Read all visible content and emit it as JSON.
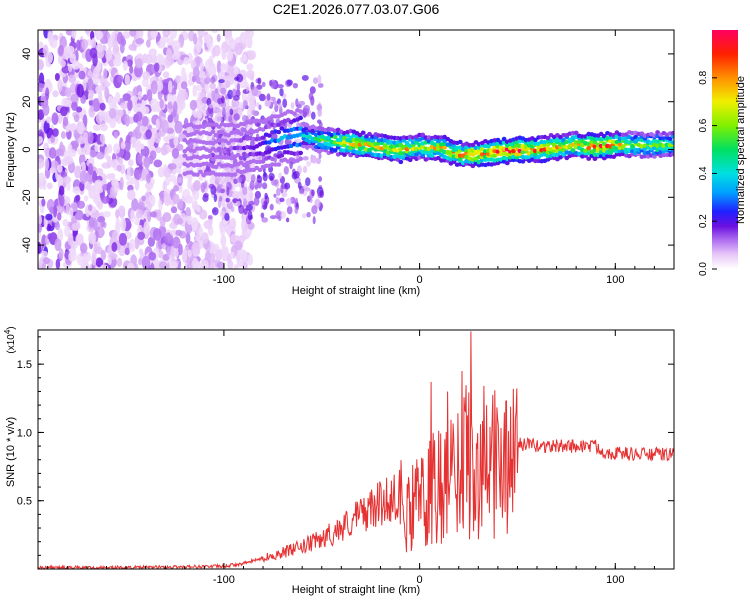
{
  "title": "C2E1.2026.077.03.07.G06",
  "chart_data": [
    {
      "type": "heatmap",
      "title": "C2E1.2026.077.03.07.G06",
      "xlabel": "Height of straight line (km)",
      "ylabel": "Frequency (Hz)",
      "xlim": [
        -195,
        130
      ],
      "ylim": [
        -50,
        50
      ],
      "xticks": [
        -100,
        0,
        100
      ],
      "yticks": [
        -40,
        -20,
        0,
        20,
        40
      ],
      "xtick_labels": [
        "-100",
        "0",
        "100"
      ],
      "ytick_labels": [
        "-40",
        "-20",
        "0",
        "20",
        "40"
      ],
      "colorbar": {
        "label": "Normalized spectral amplitude",
        "range": [
          0,
          1
        ],
        "ticks": [
          0.0,
          0.2,
          0.4,
          0.6,
          0.8
        ],
        "tick_labels": [
          "0.0",
          "0.2",
          "0.4",
          "0.6",
          "0.8"
        ]
      },
      "ridge": {
        "description": "dominant frequency track",
        "x": [
          -110,
          -95,
          -80,
          -70,
          -60,
          -50,
          -40,
          -30,
          -20,
          -10,
          0,
          10,
          20,
          30,
          40,
          50,
          60,
          70,
          80,
          90,
          100,
          110,
          120,
          130
        ],
        "freq": [
          0,
          0,
          2,
          5,
          6,
          4,
          3,
          2,
          1,
          0,
          1,
          1,
          -2,
          -2,
          -1,
          0,
          0,
          1,
          2,
          1,
          2,
          2,
          2,
          2
        ],
        "amplitude": [
          0.1,
          0.15,
          0.25,
          0.35,
          0.4,
          0.55,
          0.7,
          0.8,
          0.75,
          0.8,
          0.7,
          0.75,
          0.8,
          0.85,
          0.9,
          0.95,
          0.85,
          0.8,
          0.75,
          0.9,
          0.85,
          0.6,
          0.6,
          0.6
        ]
      }
    },
    {
      "type": "line",
      "xlabel": "Height of straight line (km)",
      "ylabel": "SNR (10 * v/v)",
      "multiplier": "(x10",
      "multiplier_exp": "4",
      "multiplier_close": ")",
      "xlim": [
        -195,
        130
      ],
      "ylim": [
        0,
        1.75
      ],
      "xticks": [
        -100,
        0,
        100
      ],
      "yticks": [
        0.5,
        1.0,
        1.5
      ],
      "xtick_labels": [
        "-100",
        "0",
        "100"
      ],
      "ytick_labels": [
        "0.5",
        "1.0",
        "1.5"
      ],
      "series": [
        {
          "name": "SNR",
          "color": "#e53131",
          "x": [
            -195,
            -150,
            -100,
            -90,
            -80,
            -70,
            -60,
            -50,
            -40,
            -30,
            -20,
            -10,
            -5,
            0,
            5,
            10,
            15,
            20,
            25,
            30,
            35,
            40,
            45,
            50,
            60,
            70,
            80,
            90,
            95,
            100,
            110,
            120,
            130
          ],
          "values": [
            0.01,
            0.01,
            0.02,
            0.04,
            0.08,
            0.12,
            0.16,
            0.22,
            0.3,
            0.4,
            0.48,
            0.56,
            0.6,
            0.62,
            0.7,
            0.75,
            0.8,
            0.9,
            1.0,
            0.95,
            1.05,
            0.92,
            0.95,
            0.92,
            0.9,
            0.9,
            0.9,
            0.9,
            0.85,
            0.85,
            0.84,
            0.84,
            0.84
          ],
          "peaks": [
            {
              "x": 6,
              "value": 1.37
            },
            {
              "x": 14,
              "value": 1.3
            },
            {
              "x": 22,
              "value": 1.45
            },
            {
              "x": 26,
              "value": 1.74
            },
            {
              "x": 34,
              "value": 1.2
            },
            {
              "x": 44,
              "value": 1.23
            }
          ]
        }
      ]
    }
  ]
}
